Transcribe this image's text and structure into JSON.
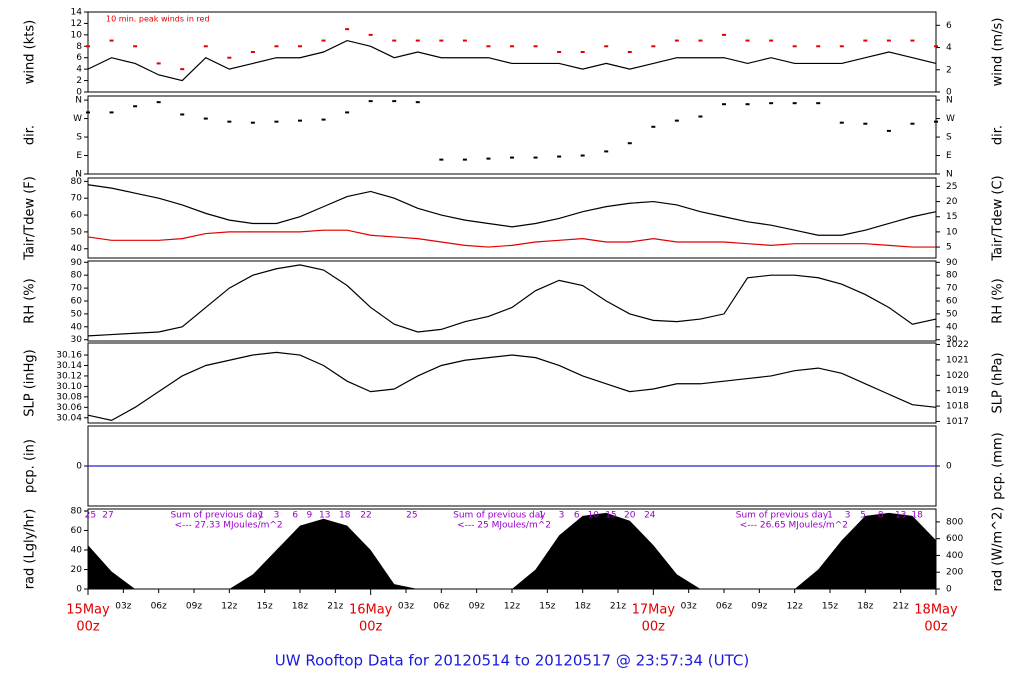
{
  "title": "UW Rooftop Data for 20120514  to  20120517 @ 23:57:34  (UTC)",
  "chart_data": [
    {
      "type": "line",
      "ylabel": "wind (kts)",
      "y2label": "wind (m/s)",
      "annotation": "10 min. peak winds in red",
      "ylim": [
        0,
        14
      ],
      "yticks": [
        0,
        2,
        4,
        6,
        8,
        10,
        12,
        14
      ],
      "y2lim": [
        0,
        7.2
      ],
      "y2ticks": [
        0,
        2,
        4,
        6
      ],
      "x": [
        0,
        2,
        4,
        6,
        8,
        10,
        12,
        14,
        16,
        18,
        20,
        22,
        24,
        26,
        28,
        30,
        32,
        34,
        36,
        38,
        40,
        42,
        44,
        46,
        48,
        50,
        52,
        54,
        56,
        58,
        60,
        62,
        64,
        66,
        68,
        70,
        72
      ],
      "series": [
        {
          "name": "wind",
          "color": "#000000",
          "type": "line",
          "values": [
            4,
            6,
            5,
            3,
            2,
            6,
            4,
            5,
            6,
            6,
            7,
            9,
            8,
            6,
            7,
            6,
            6,
            6,
            5,
            5,
            5,
            4,
            5,
            4,
            5,
            6,
            6,
            6,
            5,
            6,
            5,
            5,
            5,
            6,
            7,
            6,
            5
          ]
        },
        {
          "name": "peak wind",
          "color": "#e00000",
          "type": "points",
          "values": [
            8,
            9,
            8,
            5,
            4,
            8,
            6,
            7,
            8,
            8,
            9,
            11,
            10,
            9,
            9,
            9,
            9,
            8,
            8,
            8,
            7,
            7,
            8,
            7,
            8,
            9,
            9,
            10,
            9,
            9,
            8,
            8,
            8,
            9,
            9,
            9,
            8
          ]
        }
      ]
    },
    {
      "type": "scatter",
      "ylabel": "dir.",
      "ylim": [
        0,
        380
      ],
      "yticks": [
        {
          "value": 0,
          "label": "N"
        },
        {
          "value": 90,
          "label": "E"
        },
        {
          "value": 180,
          "label": "S"
        },
        {
          "value": 270,
          "label": "W"
        },
        {
          "value": 360,
          "label": "N"
        }
      ],
      "y2label": "dir.",
      "y2lim": [
        0,
        380
      ],
      "y2ticks": [
        {
          "value": 0,
          "label": "N"
        },
        {
          "value": 90,
          "label": "E"
        },
        {
          "value": 180,
          "label": "S"
        },
        {
          "value": 270,
          "label": "W"
        },
        {
          "value": 360,
          "label": "N"
        }
      ],
      "x": [
        0,
        2,
        4,
        6,
        8,
        10,
        12,
        14,
        16,
        18,
        20,
        22,
        24,
        26,
        28,
        30,
        32,
        34,
        36,
        38,
        40,
        42,
        44,
        46,
        48,
        50,
        52,
        54,
        56,
        58,
        60,
        62,
        64,
        66,
        68,
        70,
        72
      ],
      "series": [
        {
          "name": "direction",
          "color": "#000000",
          "type": "points",
          "values": [
            300,
            300,
            330,
            350,
            290,
            270,
            255,
            250,
            255,
            260,
            265,
            300,
            355,
            355,
            350,
            70,
            70,
            75,
            80,
            80,
            85,
            90,
            110,
            150,
            230,
            260,
            280,
            340,
            340,
            345,
            345,
            345,
            250,
            245,
            210,
            245,
            255
          ]
        }
      ]
    },
    {
      "type": "line",
      "ylabel": "Tair/Tdew (F)",
      "y2label": "Tair/Tdew (C)",
      "ylim": [
        34.5,
        82
      ],
      "yticks": [
        40,
        50,
        60,
        70,
        80
      ],
      "y2lim": [
        1.39,
        27.78
      ],
      "y2ticks": [
        5,
        10,
        15,
        20,
        25
      ],
      "x": [
        0,
        2,
        4,
        6,
        8,
        10,
        12,
        14,
        16,
        18,
        20,
        22,
        24,
        26,
        28,
        30,
        32,
        34,
        36,
        38,
        40,
        42,
        44,
        46,
        48,
        50,
        52,
        54,
        56,
        58,
        60,
        62,
        64,
        66,
        68,
        70,
        72
      ],
      "series": [
        {
          "name": "Tair",
          "color": "#000000",
          "type": "line",
          "values": [
            78,
            76,
            73,
            70,
            66,
            61,
            57,
            55,
            55,
            59,
            65,
            71,
            74,
            70,
            64,
            60,
            57,
            55,
            53,
            55,
            58,
            62,
            65,
            67,
            68,
            66,
            62,
            59,
            56,
            54,
            51,
            48,
            48,
            51,
            55,
            59,
            62
          ]
        },
        {
          "name": "Tdew",
          "color": "#e00000",
          "type": "line",
          "values": [
            47,
            45,
            45,
            45,
            46,
            49,
            50,
            50,
            50,
            50,
            51,
            51,
            48,
            47,
            46,
            44,
            42,
            41,
            42,
            44,
            45,
            46,
            44,
            44,
            46,
            44,
            44,
            44,
            43,
            42,
            43,
            43,
            43,
            43,
            42,
            41,
            41
          ]
        }
      ]
    },
    {
      "type": "line",
      "ylabel": "RH (%)",
      "y2label": "RH (%)",
      "ylim": [
        29,
        91
      ],
      "yticks": [
        30,
        40,
        50,
        60,
        70,
        80,
        90
      ],
      "y2lim": [
        29,
        91
      ],
      "y2ticks": [
        30,
        40,
        50,
        60,
        70,
        80,
        90
      ],
      "x": [
        0,
        2,
        4,
        6,
        8,
        10,
        12,
        14,
        16,
        18,
        20,
        22,
        24,
        26,
        28,
        30,
        32,
        34,
        36,
        38,
        40,
        42,
        44,
        46,
        48,
        50,
        52,
        54,
        56,
        58,
        60,
        62,
        64,
        66,
        68,
        70,
        72
      ],
      "series": [
        {
          "name": "RH",
          "color": "#000000",
          "type": "line",
          "values": [
            33,
            34,
            35,
            36,
            40,
            55,
            70,
            80,
            85,
            88,
            84,
            72,
            55,
            42,
            36,
            38,
            44,
            48,
            55,
            68,
            76,
            72,
            60,
            50,
            45,
            44,
            46,
            50,
            78,
            80,
            80,
            78,
            73,
            65,
            55,
            42,
            46
          ]
        }
      ]
    },
    {
      "type": "line",
      "ylabel": "SLP (inHg)",
      "y2label": "SLP (hPa)",
      "ylim": [
        30.03,
        30.183
      ],
      "yticks": [
        30.04,
        30.06,
        30.08,
        {
          "value": 30.1,
          "label": "30.10"
        },
        30.12,
        30.14,
        30.16
      ],
      "y2lim": [
        1016.9,
        1022.1
      ],
      "y2ticks": [
        1017,
        1018,
        1019,
        1020,
        1021,
        1022
      ],
      "x": [
        0,
        2,
        4,
        6,
        8,
        10,
        12,
        14,
        16,
        18,
        20,
        22,
        24,
        26,
        28,
        30,
        32,
        34,
        36,
        38,
        40,
        42,
        44,
        46,
        48,
        50,
        52,
        54,
        56,
        58,
        60,
        62,
        64,
        66,
        68,
        70,
        72
      ],
      "series": [
        {
          "name": "SLP",
          "color": "#000000",
          "type": "line",
          "values": [
            30.045,
            30.035,
            30.06,
            30.09,
            30.12,
            30.14,
            30.15,
            30.16,
            30.165,
            30.16,
            30.14,
            30.11,
            30.09,
            30.095,
            30.12,
            30.14,
            30.15,
            30.155,
            30.16,
            30.155,
            30.14,
            30.12,
            30.105,
            30.09,
            30.095,
            30.105,
            30.105,
            30.11,
            30.115,
            30.12,
            30.13,
            30.135,
            30.125,
            30.105,
            30.085,
            30.065,
            30.06
          ]
        }
      ]
    },
    {
      "type": "line",
      "ylabel": "pcp. (in)",
      "y2label": "pcp. (mm)",
      "ylim": [
        -1,
        1
      ],
      "yticks": [
        0
      ],
      "y2lim": [
        -1,
        1
      ],
      "y2ticks": [
        0
      ],
      "x": [
        0,
        72
      ],
      "series": [
        {
          "name": "pcp",
          "color": "#2020d0",
          "type": "line",
          "values": [
            0,
            0
          ]
        }
      ]
    },
    {
      "type": "area",
      "ylabel": "rad (Lgly/hr)",
      "y2label": "rad (W/m^2)",
      "ylim": [
        0,
        82
      ],
      "yticks": [
        0,
        20,
        40,
        60,
        80
      ],
      "y2lim": [
        0,
        953.7
      ],
      "y2ticks": [
        0,
        200,
        400,
        600,
        800
      ],
      "x": [
        0,
        2,
        4,
        6,
        8,
        10,
        12,
        14,
        16,
        18,
        20,
        22,
        24,
        26,
        28,
        30,
        32,
        34,
        36,
        38,
        40,
        42,
        44,
        46,
        48,
        50,
        52,
        54,
        56,
        58,
        60,
        62,
        64,
        66,
        68,
        70,
        72
      ],
      "series": [
        {
          "name": "rad",
          "color": "#000000",
          "type": "area",
          "values": [
            45,
            18,
            0,
            0,
            0,
            0,
            0,
            15,
            40,
            65,
            72,
            65,
            40,
            5,
            0,
            0,
            0,
            0,
            0,
            20,
            55,
            75,
            78,
            70,
            45,
            15,
            0,
            0,
            0,
            0,
            0,
            20,
            50,
            75,
            78,
            75,
            50
          ]
        }
      ],
      "annotations": [
        {
          "x": 7,
          "text": "Sum of previous day",
          "sub": "<--- 27.33 MJoules/m^2"
        },
        {
          "x": 31,
          "text": "Sum of previous day",
          "sub": "<--- 25 MJoules/m^2"
        },
        {
          "x": 55,
          "text": "Sum of previous day",
          "sub": "<--- 26.65 MJoules/m^2"
        }
      ],
      "hour_marks": [
        {
          "x": 0.2,
          "label": "25"
        },
        {
          "x": 1.7,
          "label": "27"
        },
        {
          "x": 14.7,
          "label": "1"
        },
        {
          "x": 16,
          "label": "3"
        },
        {
          "x": 17.6,
          "label": "6"
        },
        {
          "x": 18.8,
          "label": "9"
        },
        {
          "x": 20.1,
          "label": "13"
        },
        {
          "x": 21.8,
          "label": "18"
        },
        {
          "x": 23.6,
          "label": "22"
        },
        {
          "x": 27.5,
          "label": "25"
        },
        {
          "x": 38.5,
          "label": "1"
        },
        {
          "x": 40.2,
          "label": "3"
        },
        {
          "x": 41.5,
          "label": "6"
        },
        {
          "x": 42.9,
          "label": "10"
        },
        {
          "x": 44.4,
          "label": "15"
        },
        {
          "x": 46,
          "label": "20"
        },
        {
          "x": 47.7,
          "label": "24"
        },
        {
          "x": 63,
          "label": "1"
        },
        {
          "x": 64.5,
          "label": "3"
        },
        {
          "x": 65.8,
          "label": "5"
        },
        {
          "x": 67.3,
          "label": "8"
        },
        {
          "x": 69,
          "label": "13"
        },
        {
          "x": 70.4,
          "label": "18"
        }
      ],
      "xlim": [
        0,
        72
      ],
      "xticks": [
        {
          "value": 3,
          "label": "03z"
        },
        {
          "value": 6,
          "label": "06z"
        },
        {
          "value": 9,
          "label": "09z"
        },
        {
          "value": 12,
          "label": "12z"
        },
        {
          "value": 15,
          "label": "15z"
        },
        {
          "value": 18,
          "label": "18z"
        },
        {
          "value": 21,
          "label": "21z"
        },
        {
          "value": 27,
          "label": "03z"
        },
        {
          "value": 30,
          "label": "06z"
        },
        {
          "value": 33,
          "label": "09z"
        },
        {
          "value": 36,
          "label": "12z"
        },
        {
          "value": 39,
          "label": "15z"
        },
        {
          "value": 42,
          "label": "18z"
        },
        {
          "value": 45,
          "label": "21z"
        },
        {
          "value": 51,
          "label": "03z"
        },
        {
          "value": 54,
          "label": "06z"
        },
        {
          "value": 57,
          "label": "09z"
        },
        {
          "value": 60,
          "label": "12z"
        },
        {
          "value": 63,
          "label": "15z"
        },
        {
          "value": 66,
          "label": "18z"
        },
        {
          "value": 69,
          "label": "21z"
        }
      ],
      "date_ticks": [
        {
          "value": 0,
          "label": "15May",
          "sublabel": "00z"
        },
        {
          "value": 24,
          "label": "16May",
          "sublabel": "00z"
        },
        {
          "value": 48,
          "label": "17May",
          "sublabel": "00z"
        },
        {
          "value": 72,
          "label": "18May",
          "sublabel": "00z"
        }
      ]
    }
  ]
}
